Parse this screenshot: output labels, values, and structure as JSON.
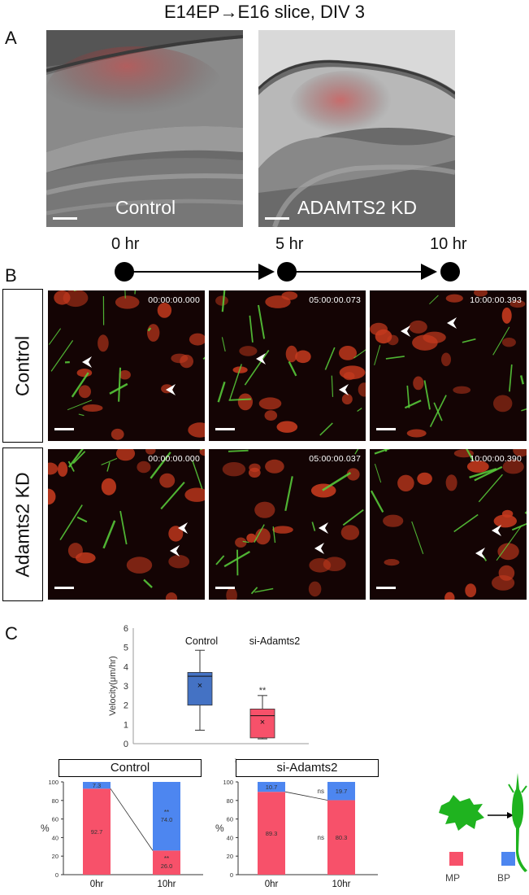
{
  "figure": {
    "title": "E14EP→E16 slice,  DIV 3",
    "panels": {
      "a": {
        "letter": "A",
        "left_label": "Control",
        "right_label": "ADAMTS2 KD"
      },
      "b": {
        "letter": "B",
        "timeline": [
          "0 hr",
          "5 hr",
          "10 hr"
        ],
        "rows": [
          {
            "label": "Control",
            "stamps": [
              "00:00:00.000",
              "05:00:00.073",
              "10:00:00.393"
            ]
          },
          {
            "label": "Adamts2 KD",
            "stamps": [
              "00:00:00.000",
              "05:00:00.037",
              "10:00:00.390"
            ]
          }
        ]
      },
      "c": {
        "letter": "C"
      }
    },
    "colors": {
      "mp": "#f7516a",
      "bp": "#4d86f0",
      "box_control": "#4472c4",
      "box_si": "#f7516a",
      "cell_icon": "#1fb31f"
    },
    "legend": {
      "mp": "MP",
      "bp": "BP"
    }
  },
  "chart_data": [
    {
      "type": "box",
      "ylabel": "Velocity(μm/hr)",
      "ylim": [
        0,
        6
      ],
      "yticks": [
        "0",
        "1",
        "2",
        "3",
        "4",
        "5",
        "6"
      ],
      "x_tick": "1",
      "groups": [
        {
          "name": "Control",
          "min": 0.7,
          "q1": 2.0,
          "median": 3.5,
          "q3": 3.7,
          "max": 4.85,
          "mean": 3.05,
          "sig": ""
        },
        {
          "name": "si-Adamts2",
          "min": 0.25,
          "q1": 0.3,
          "median": 1.45,
          "q3": 1.8,
          "max": 2.5,
          "mean": 1.15,
          "sig": "**"
        }
      ]
    },
    {
      "type": "bar",
      "stacked": true,
      "title": "Control",
      "ylabel": "%",
      "ylim": [
        0,
        100
      ],
      "yticks": [
        "0",
        "20",
        "40",
        "60",
        "80",
        "100"
      ],
      "categories": [
        "0hr",
        "10hr"
      ],
      "series": [
        {
          "name": "MP",
          "values": [
            92.7,
            26.0
          ],
          "labels": [
            "92.7",
            "26.0"
          ],
          "sig": [
            "",
            "**"
          ]
        },
        {
          "name": "BP",
          "values": [
            7.3,
            74.0
          ],
          "labels": [
            "7.3",
            "74.0"
          ],
          "sig": [
            "",
            "**"
          ]
        }
      ]
    },
    {
      "type": "bar",
      "stacked": true,
      "title": "si-Adamts2",
      "ylabel": "%",
      "ylim": [
        0,
        100
      ],
      "yticks": [
        "0",
        "20",
        "40",
        "60",
        "80",
        "100"
      ],
      "categories": [
        "0hr",
        "10hr"
      ],
      "series": [
        {
          "name": "MP",
          "values": [
            89.3,
            80.3
          ],
          "labels": [
            "89.3",
            "80.3"
          ],
          "sig": [
            "",
            "ns"
          ]
        },
        {
          "name": "BP",
          "values": [
            10.7,
            19.7
          ],
          "labels": [
            "10.7",
            "19.7"
          ],
          "sig": [
            "",
            "ns"
          ]
        }
      ]
    }
  ]
}
